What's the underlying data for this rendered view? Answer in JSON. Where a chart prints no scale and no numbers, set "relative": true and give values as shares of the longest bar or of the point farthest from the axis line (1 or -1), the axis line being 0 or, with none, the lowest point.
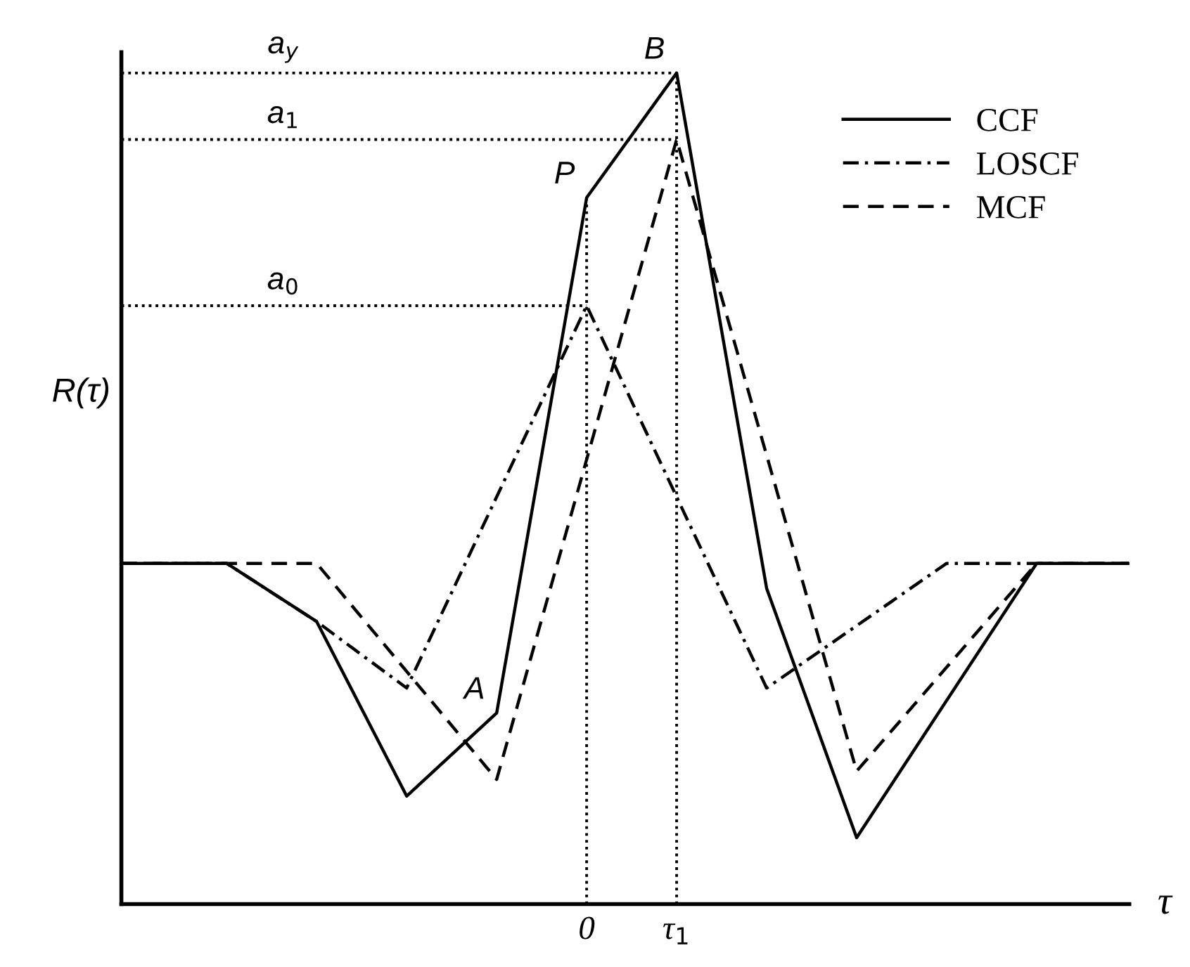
{
  "chart_data": {
    "type": "line",
    "relative": true,
    "xlabel": "τ",
    "ylabel": "R(τ)",
    "xlim": [
      -5.17,
      6.03
    ],
    "xticks": [
      0,
      {
        "value": 1,
        "label": "τ$_{1}$"
      }
    ],
    "tick_labels": "x",
    "legend": "top right",
    "grid": false,
    "series": [
      {
        "name": "CCF",
        "color": "#000000",
        "line_style": "solid",
        "x": [
          -5.17,
          -4,
          -3,
          -2,
          -1,
          0,
          1,
          2,
          3,
          5,
          6.03
        ],
        "values": [
          0.41,
          0.41,
          0.34,
          0.13,
          0.23,
          0.85,
          1,
          0.38,
          0.08,
          0.41,
          0.41
        ]
      },
      {
        "name": "LOSCF",
        "color": "#000000",
        "line_style": "dashdot",
        "x": [
          -5.17,
          -4,
          -3,
          -2,
          0,
          2,
          4,
          6.03
        ],
        "values": [
          0.41,
          0.41,
          0.34,
          0.26,
          0.72,
          0.26,
          0.41,
          0.41
        ]
      },
      {
        "name": "MCF",
        "color": "#000000",
        "line_style": "dashed",
        "x": [
          -5.17,
          -3,
          -1,
          1,
          3,
          5,
          6.03
        ],
        "values": [
          0.41,
          0.41,
          0.15,
          0.92,
          0.16,
          0.41,
          0.41
        ]
      }
    ],
    "ref_lines": [
      {
        "axis": "y",
        "value": 1,
        "label": "a$_{y}$",
        "line_style": "dotted"
      },
      {
        "axis": "y",
        "value": 0.92,
        "label": "a$_{1}$",
        "line_style": "dotted"
      },
      {
        "axis": "y",
        "value": 0.72,
        "label": "a$_{0}$",
        "line_style": "dotted"
      },
      {
        "axis": "x",
        "value": 0,
        "line_style": "dotted"
      },
      {
        "axis": "x",
        "value": 1,
        "line_style": "dotted"
      }
    ],
    "annotations": [
      {
        "text": "A",
        "x": -1,
        "y": 0.23
      },
      {
        "text": "B",
        "x": 1,
        "y": 1
      },
      {
        "text": "P",
        "x": 0,
        "y": 0.85
      }
    ]
  }
}
